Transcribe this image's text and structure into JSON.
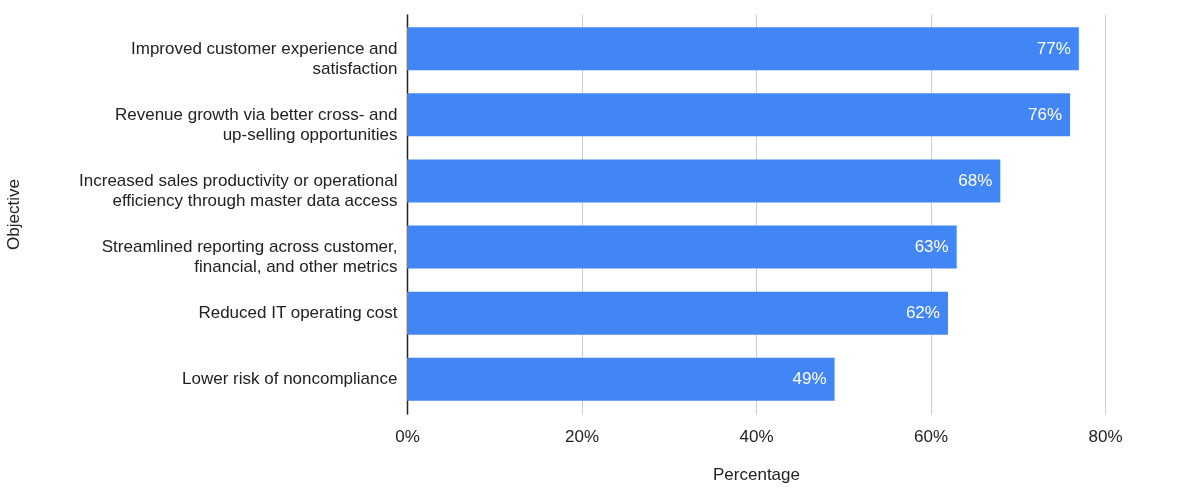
{
  "chart_data": {
    "type": "bar",
    "orientation": "horizontal",
    "xlabel": "Percentage",
    "ylabel": "Objective",
    "categories": [
      "Improved customer experience and satisfaction",
      "Revenue growth via better cross- and up-selling opportunities",
      "Increased sales productivity or operational efficiency through master data access",
      "Streamlined reporting across customer, financial, and other metrics",
      "Reduced IT operating cost",
      "Lower risk of noncompliance"
    ],
    "values": [
      77,
      76,
      68,
      63,
      62,
      49
    ],
    "value_labels": [
      "77%",
      "76%",
      "68%",
      "63%",
      "62%",
      "49%"
    ],
    "color": "#4285f4",
    "xlim": [
      0,
      80
    ],
    "xticks": [
      {
        "value": 0,
        "label": "0%"
      },
      {
        "value": 20,
        "label": "20%"
      },
      {
        "value": 40,
        "label": "40%"
      },
      {
        "value": 60,
        "label": "60%"
      },
      {
        "value": 80,
        "label": "80%"
      }
    ],
    "grid": "x"
  }
}
